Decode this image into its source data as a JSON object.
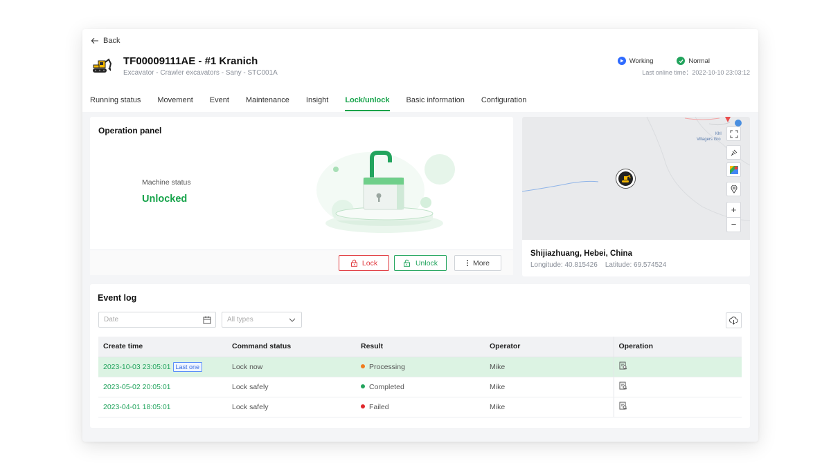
{
  "header": {
    "back_label": "Back",
    "title": "TF00009111AE - #1 Kranich",
    "subtitle": "Excavator - Crawler excavators - Sany - STC001A",
    "statuses": [
      {
        "label": "Working",
        "color": "#2f6bff",
        "icon": "play-icon"
      },
      {
        "label": "Normal",
        "color": "#22a45d",
        "icon": "check-icon"
      }
    ],
    "last_online": "Last online time：2022-10-10 23:03:12"
  },
  "tabs": [
    {
      "label": "Running status",
      "active": false
    },
    {
      "label": "Movement",
      "active": false
    },
    {
      "label": "Event",
      "active": false
    },
    {
      "label": "Maintenance",
      "active": false
    },
    {
      "label": "Insight",
      "active": false
    },
    {
      "label": "Lock/unlock",
      "active": true
    },
    {
      "label": "Basic information",
      "active": false
    },
    {
      "label": "Configuration",
      "active": false
    }
  ],
  "operation_panel": {
    "title": "Operation panel",
    "machine_status_label": "Machine status",
    "machine_status_value": "Unlocked",
    "lock_label": "Lock",
    "unlock_label": "Unlock",
    "more_label": "More"
  },
  "map": {
    "location_name": "Shijiazhuang, Hebei, China",
    "coordinates": "Longitude: 40.815426    Latitude: 69.574524",
    "map_text_1": "Khl",
    "map_text_2": "Villagers Gro",
    "controls": [
      "fullscreen-icon",
      "satellite-icon",
      "map-layers-icon",
      "locate-icon",
      "zoom-in-icon",
      "zoom-out-icon"
    ]
  },
  "event_log": {
    "title": "Event log",
    "date_placeholder": "Date",
    "type_placeholder": "All types",
    "columns": [
      "Create time",
      "Command status",
      "Result",
      "Operator",
      "Operation"
    ],
    "rows": [
      {
        "time": "2023-10-03 23:05:01",
        "badge": "Last one",
        "command": "Lock now",
        "result": "Processing",
        "result_color": "#f07b1d",
        "operator": "Mike"
      },
      {
        "time": "2023-05-02 20:05:01",
        "badge": "",
        "command": "Lock safely",
        "result": "Completed",
        "result_color": "#22a45d",
        "operator": "Mike"
      },
      {
        "time": "2023-04-01 18:05:01",
        "badge": "",
        "command": "Lock safely",
        "result": "Failed",
        "result_color": "#e0262b",
        "operator": "Mike"
      }
    ]
  }
}
